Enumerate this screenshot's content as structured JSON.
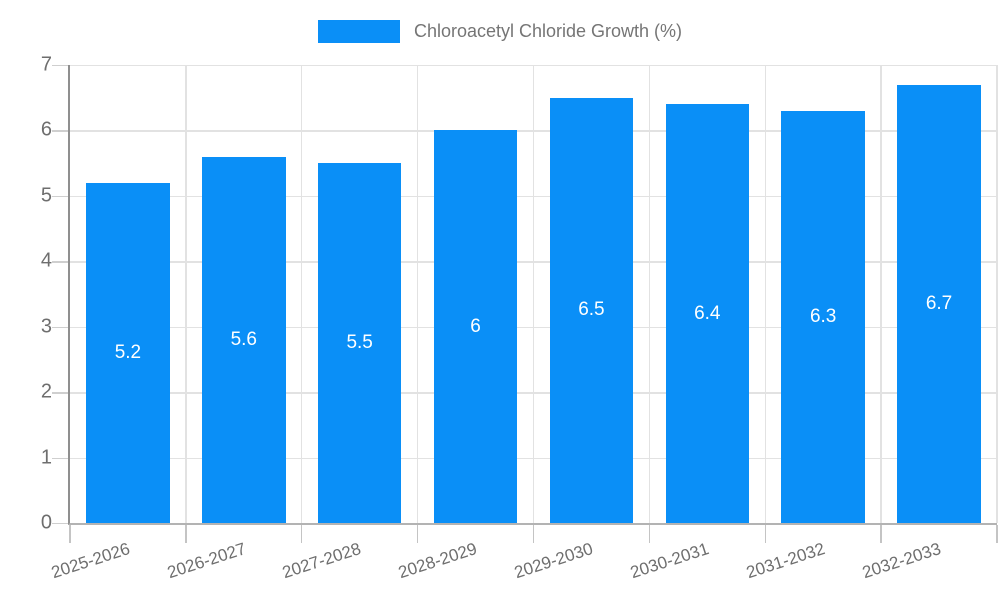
{
  "chart_data": {
    "type": "bar",
    "title": "Chloroacetyl Chloride Growth (%)",
    "legend": [
      {
        "label": "Chloroacetyl Chloride Growth (%)",
        "color": "#0A8FF7"
      }
    ],
    "legend_position": "top",
    "categories": [
      "2025-2026",
      "2026-2027",
      "2027-2028",
      "2028-2029",
      "2029-2030",
      "2030-2031",
      "2031-2032",
      "2032-2033"
    ],
    "values": [
      5.2,
      5.6,
      5.5,
      6,
      6.5,
      6.4,
      6.3,
      6.7
    ],
    "value_labels": [
      "5.2",
      "5.6",
      "5.5",
      "6",
      "6.5",
      "6.4",
      "6.3",
      "6.7"
    ],
    "xlabel": "",
    "ylabel": "",
    "ylim": [
      0,
      7
    ],
    "y_ticks": [
      0,
      1,
      2,
      3,
      4,
      5,
      6,
      7
    ],
    "grid": true,
    "bar_color": "#0A8FF7",
    "value_label_color": "#ffffff",
    "axis_text_color": "#6e6e6e"
  }
}
